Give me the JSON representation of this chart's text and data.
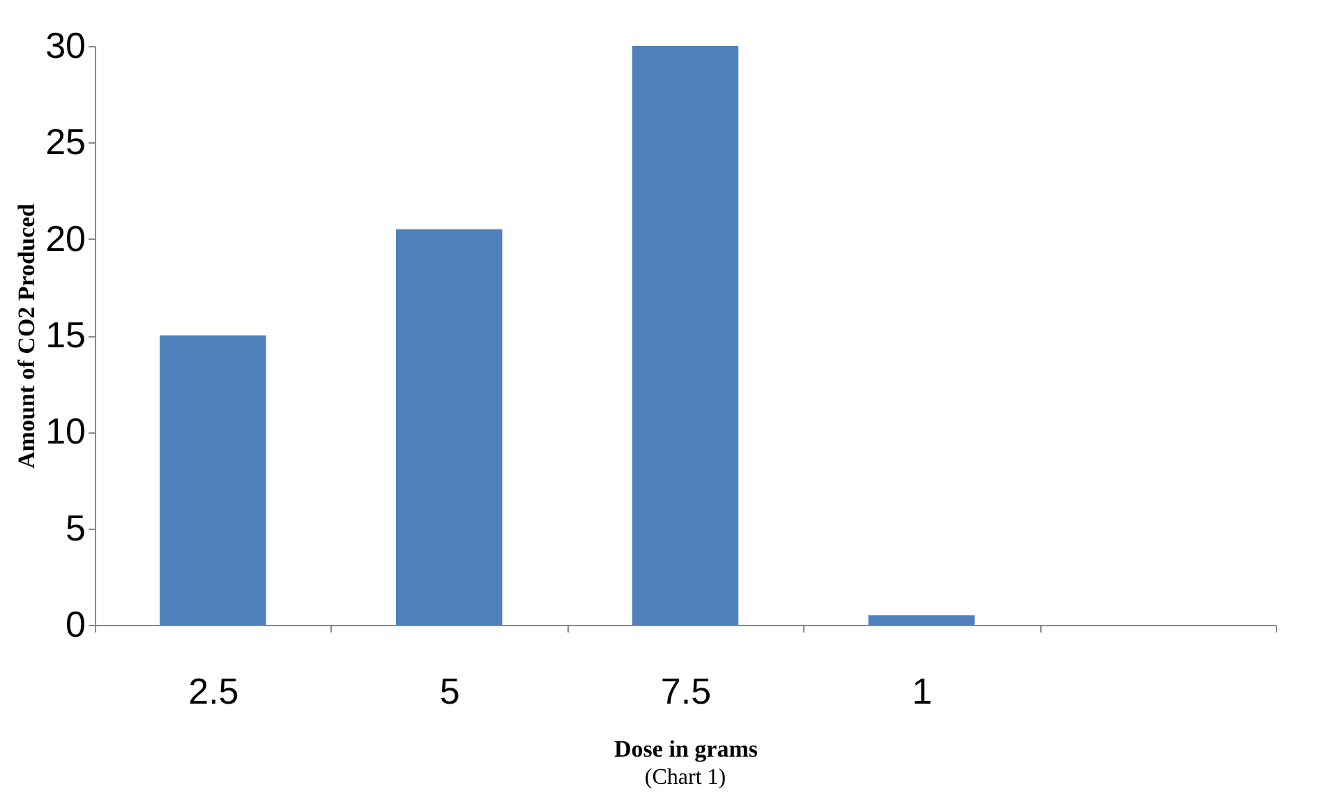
{
  "chart_data": {
    "type": "bar",
    "xlabel": "Dose in grams",
    "ylabel": "Amount of CO2 Produced",
    "categories": [
      "2.5",
      "5",
      "7.5",
      "1",
      null
    ],
    "values": [
      15,
      20.5,
      30,
      0.5,
      null
    ],
    "color": "#4f81bd",
    "ylim": [
      0,
      30
    ],
    "yticks": [
      0,
      5,
      10,
      15,
      20,
      25,
      30
    ],
    "grid": false,
    "annotations": [
      "(Chart 1)"
    ]
  }
}
